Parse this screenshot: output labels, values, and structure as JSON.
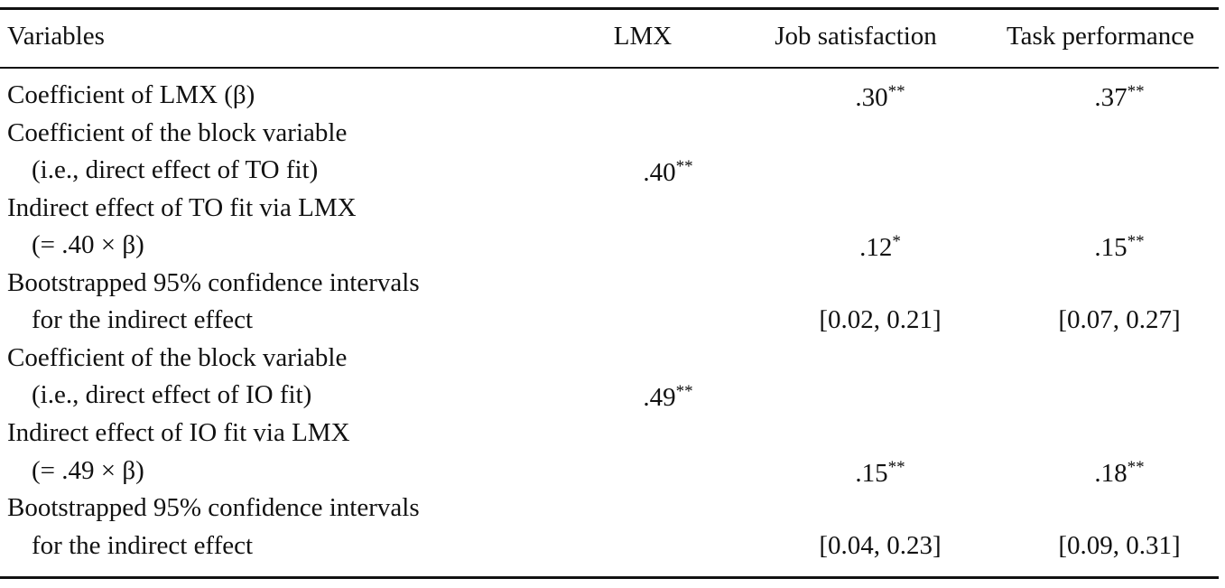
{
  "table": {
    "header": [
      "Variables",
      "LMX",
      "Job satisfaction",
      "Task performance"
    ],
    "rows": [
      {
        "label": [
          "Coefficient of LMX (β)"
        ],
        "cells": [
          null,
          {
            "text": ".30",
            "sup": "**"
          },
          {
            "text": ".37",
            "sup": "**"
          }
        ]
      },
      {
        "label": [
          "Coefficient of the block variable",
          "(i.e., direct effect of TO fit)"
        ],
        "cells": [
          {
            "text": ".40",
            "sup": "**"
          },
          null,
          null
        ]
      },
      {
        "label": [
          "Indirect effect of TO fit via LMX",
          "(= .40 × β)"
        ],
        "cells": [
          null,
          {
            "text": ".12",
            "sup": "*"
          },
          {
            "text": ".15",
            "sup": "**"
          }
        ]
      },
      {
        "label": [
          "Bootstrapped 95% confidence intervals",
          "for the indirect effect"
        ],
        "cells": [
          null,
          {
            "text": "[0.02, 0.21]"
          },
          {
            "text": "[0.07, 0.27]"
          }
        ]
      },
      {
        "label": [
          "Coefficient of the block variable",
          "(i.e., direct effect of IO fit)"
        ],
        "cells": [
          {
            "text": ".49",
            "sup": "**"
          },
          null,
          null
        ]
      },
      {
        "label": [
          "Indirect effect of IO fit via LMX",
          "(= .49 × β)"
        ],
        "cells": [
          null,
          {
            "text": ".15",
            "sup": "**"
          },
          {
            "text": ".18",
            "sup": "**"
          }
        ]
      },
      {
        "label": [
          "Bootstrapped 95% confidence intervals",
          "for the indirect effect"
        ],
        "cells": [
          null,
          {
            "text": "[0.04, 0.23]"
          },
          {
            "text": "[0.09, 0.31]"
          }
        ]
      }
    ]
  }
}
